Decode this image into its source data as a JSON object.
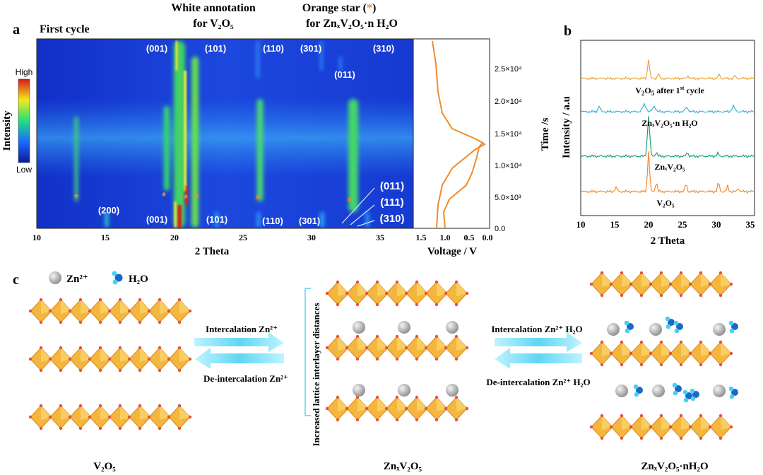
{
  "panel_a": {
    "letter": "a",
    "cycle_label": "First cycle",
    "white_note_line1": "White annotation",
    "white_note_line2": "for V₂O₅",
    "orange_note_line1": "Orange star (",
    "orange_note_star": "*",
    "orange_note_line1_end": ")",
    "orange_note_line2": "for ZnₓV₂O₅·n H₂O",
    "colorbar_title": "Intensity",
    "colorbar_high": "High",
    "colorbar_low": "Low",
    "xlabel": "2 Theta",
    "xticks": [
      "10",
      "15",
      "20",
      "25",
      "30",
      "35"
    ],
    "voltage_xlabel": "Voltage / V",
    "voltage_xticks": [
      "1.5",
      "1.0",
      "0.5",
      "0.0"
    ],
    "time_ylabel": "Time /s",
    "time_yticks": [
      "0.0",
      "5.0×10³",
      "1.0×10⁴",
      "1.5×10⁴",
      "2.0×10⁴",
      "2.5×10⁴"
    ],
    "top_peaks": [
      "(001)",
      "(101)",
      "(110)",
      "(301)",
      "(310)",
      "(011)"
    ],
    "bottom_peaks": [
      "(200)",
      "(001)",
      "(101)",
      "(110)",
      "(301)"
    ],
    "right_peaks": [
      "(011)",
      "(111)",
      "(310)"
    ],
    "star_glyph": "*"
  },
  "panel_b": {
    "letter": "b",
    "ylabel": "Intensity / a.u",
    "xlabel": "2 Theta",
    "xticks": [
      "10",
      "15",
      "20",
      "25",
      "30",
      "35"
    ],
    "traces": [
      {
        "label": "V₂O₅",
        "color": "#F08A2E"
      },
      {
        "label": "ZnₓV₂O₅",
        "color": "#1E9E73"
      },
      {
        "label": "ZnₓV₂O₅·n H₂O",
        "color": "#3AB0DA"
      },
      {
        "label": "V₂O₅ after 1st cycle",
        "color": "#E8A63A"
      }
    ]
  },
  "panel_c": {
    "letter": "c",
    "legend_zn": "Zn²⁺",
    "legend_h2o": "H₂O",
    "arrow1_top": "Intercalation Zn²⁺",
    "arrow1_bottom": "De-intercalation Zn²⁺",
    "arrow2_top": "Intercalation Zn²⁺ H₂O",
    "arrow2_bottom": "De-intercalation Zn²⁺ H₂O",
    "bracket_label": "Increased lattice interlayer distances",
    "struct1": "V₂O₅",
    "struct2": "ZnₓV₂O₅",
    "struct3": "ZnₓV₂O₅·nH₂O"
  }
}
